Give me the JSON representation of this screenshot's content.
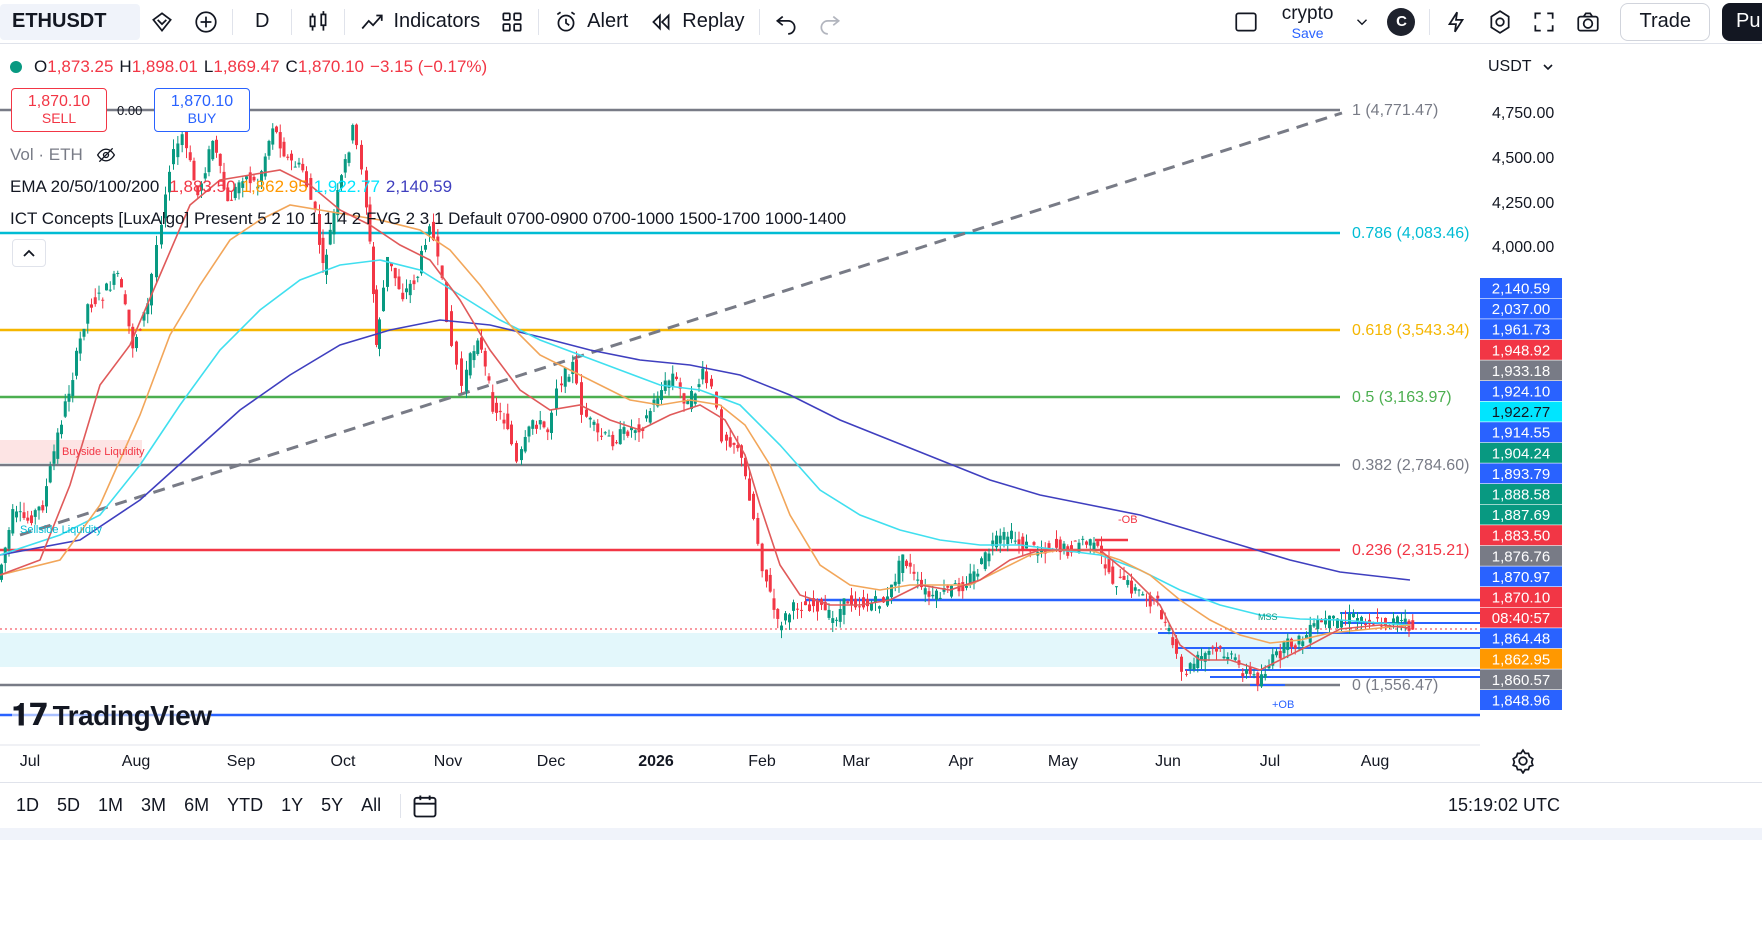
{
  "toolbar": {
    "symbol": "ETHUSDT",
    "interval": "D",
    "indicators_label": "Indicators",
    "alert_label": "Alert",
    "replay_label": "Replay",
    "layout_name": "crypto",
    "save_label": "Save",
    "avatar_letter": "C",
    "trade_label": "Trade",
    "publish_label": "Pu"
  },
  "legend": {
    "ohlc": {
      "o_label": "O",
      "o": "1,873.25",
      "h_label": "H",
      "h": "1,898.01",
      "l_label": "L",
      "l": "1,869.47",
      "c_label": "C",
      "c": "1,870.10",
      "change": "−3.15 (−0.17%)"
    },
    "sell_price": "1,870.10",
    "sell_label": "SELL",
    "buy_price": "1,870.10",
    "buy_label": "BUY",
    "spread": "0.00",
    "vol_label": "Vol · ETH",
    "ema_label": "EMA 20/50/100/200",
    "ema_values": [
      "1,883.50",
      "1,862.95",
      "1,922.77",
      "2,140.59"
    ],
    "ict_label": "ICT Concepts [LuxAlgo] Present 5 2 10 1 1 4 2 FVG 2 3 1 Default 0700-0900 0700-1000 1500-1700 1000-1400"
  },
  "currency": "USDT",
  "chart_data": {
    "type": "line",
    "xlabels": [
      "Jul",
      "Aug",
      "Sep",
      "Oct",
      "Nov",
      "Dec",
      "2026",
      "Feb",
      "Mar",
      "Apr",
      "May",
      "Jun",
      "Jul",
      "Aug"
    ],
    "yticks": [
      "4,750.00",
      "4,500.00",
      "4,250.00",
      "4,000.00"
    ],
    "fib_levels": [
      {
        "label": "1 (4,771.47)",
        "level": 1,
        "price": 4771.47,
        "color": "#787b86"
      },
      {
        "label": "0.786 (4,083.46)",
        "level": 0.786,
        "price": 4083.46,
        "color": "#00bcd4"
      },
      {
        "label": "0.618 (3,543.34)",
        "level": 0.618,
        "price": 3543.34,
        "color": "#f5b600"
      },
      {
        "label": "0.5 (3,163.97)",
        "level": 0.5,
        "price": 3163.97,
        "color": "#4caf50"
      },
      {
        "label": "0.382 (2,784.60)",
        "level": 0.382,
        "price": 2784.6,
        "color": "#787b86"
      },
      {
        "label": "0.236 (2,315.21)",
        "level": 0.236,
        "price": 2315.21,
        "color": "#f23645"
      },
      {
        "label": "0 (1,556.47)",
        "level": 0,
        "price": 1556.47,
        "color": "#787b86"
      }
    ],
    "price_tags": [
      {
        "value": "2,140.59",
        "color": "#2962ff"
      },
      {
        "value": "2,037.00",
        "color": "#2962ff"
      },
      {
        "value": "1,961.73",
        "color": "#2962ff"
      },
      {
        "value": "1,948.92",
        "color": "#f23645"
      },
      {
        "value": "1,933.18",
        "color": "#787b86"
      },
      {
        "value": "1,924.10",
        "color": "#2962ff"
      },
      {
        "value": "1,922.77",
        "color": "#00e5ff"
      },
      {
        "value": "1,914.55",
        "color": "#2962ff"
      },
      {
        "value": "1,904.24",
        "color": "#089981"
      },
      {
        "value": "1,893.79",
        "color": "#2962ff"
      },
      {
        "value": "1,888.58",
        "color": "#089981"
      },
      {
        "value": "1,887.69",
        "color": "#089981"
      },
      {
        "value": "1,883.50",
        "color": "#f23645"
      },
      {
        "value": "1,876.76",
        "color": "#787b86"
      },
      {
        "value": "1,870.97",
        "color": "#2962ff"
      },
      {
        "value": "1,870.10",
        "color": "#f23645"
      },
      {
        "value": "08:40:57",
        "color": "#f23645"
      },
      {
        "value": "1,864.48",
        "color": "#2962ff"
      },
      {
        "value": "1,862.95",
        "color": "#ff9800"
      },
      {
        "value": "1,860.57",
        "color": "#787b86"
      },
      {
        "value": "1,848.96",
        "color": "#2962ff"
      }
    ],
    "annotations": {
      "buyside_liquidity": "Buyside Liquidity",
      "sellside_liquidity": "Sellside Liquidity",
      "neg_ob": "-OB",
      "pos_ob": "+OB",
      "mss": "MSS"
    },
    "series": [
      {
        "name": "EMA 20",
        "color": "#f23645"
      },
      {
        "name": "EMA 50",
        "color": "#ff9800"
      },
      {
        "name": "EMA 100",
        "color": "#00e5ff"
      },
      {
        "name": "EMA 200",
        "color": "#3f3fbf"
      }
    ]
  },
  "bottom_bar": {
    "ranges": [
      "1D",
      "5D",
      "1M",
      "3M",
      "6M",
      "YTD",
      "1Y",
      "5Y",
      "All"
    ],
    "clock": "15:19:02 UTC"
  },
  "branding": {
    "logo_text": "TradingView"
  }
}
